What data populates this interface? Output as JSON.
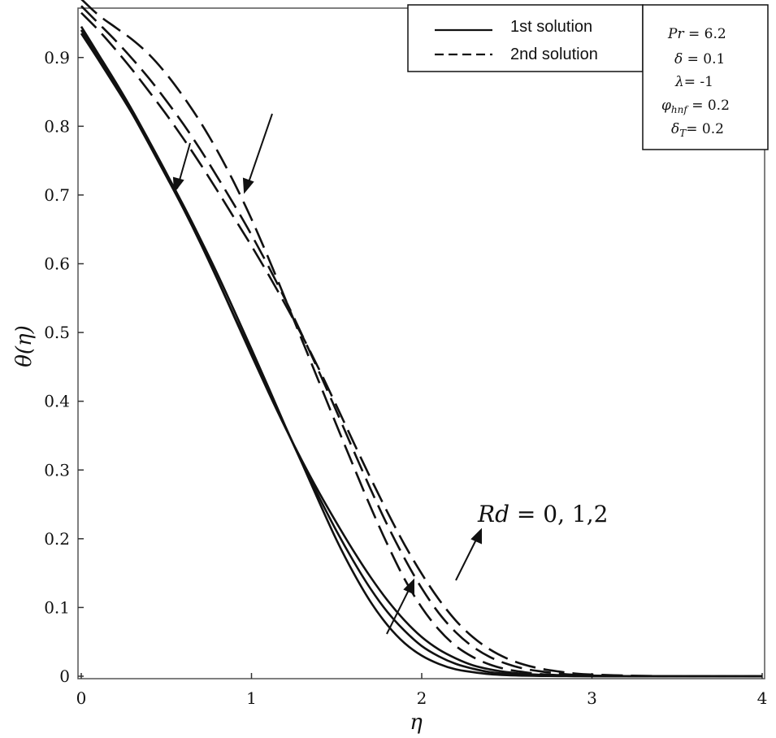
{
  "chart_data": {
    "type": "line",
    "xlabel": "η",
    "ylabel": "θ(η)",
    "xlim": [
      0,
      4
    ],
    "ylim": [
      0,
      0.96
    ],
    "xticks": [
      0,
      1,
      2,
      3,
      4
    ],
    "yticks": [
      0,
      0.1,
      0.2,
      0.3,
      0.4,
      0.5,
      0.6,
      0.7,
      0.8,
      0.9
    ],
    "x": [
      0,
      0.1,
      0.2,
      0.3,
      0.4,
      0.5,
      0.6,
      0.7,
      0.8,
      0.9,
      1.0,
      1.1,
      1.2,
      1.3,
      1.4,
      1.5,
      1.6,
      1.7,
      1.8,
      1.9,
      2.0,
      2.1,
      2.2,
      2.3,
      2.4,
      2.5,
      2.6,
      2.7,
      2.8,
      2.9,
      3.0,
      3.2,
      3.4,
      3.6,
      3.8,
      4.0
    ],
    "legend": {
      "items": [
        {
          "label": "1st solution",
          "style": "solid"
        },
        {
          "label": "2nd solution",
          "style": "dashed"
        }
      ]
    },
    "parameters": {
      "pr": {
        "symbol": "Pr",
        "value": " = 6.2"
      },
      "delta": {
        "symbol": "δ",
        "value": " = 0.1"
      },
      "lambda": {
        "symbol": "λ",
        "value": "=  -1"
      },
      "phi": {
        "symbol": "φ",
        "sub": "hnf",
        "value": " = 0.2"
      },
      "delta_t": {
        "symbol": "δ",
        "sub": "T",
        "value": "= 0.2"
      }
    },
    "annotation": {
      "symbol": "Rd",
      "value": " = 0, 1,2"
    },
    "series": [
      {
        "name": "1st solution Rd = 0",
        "style": "solid",
        "values": [
          0.935,
          0.897,
          0.858,
          0.818,
          0.775,
          0.731,
          0.685,
          0.636,
          0.585,
          0.531,
          0.476,
          0.42,
          0.363,
          0.308,
          0.252,
          0.198,
          0.15,
          0.108,
          0.074,
          0.048,
          0.03,
          0.018,
          0.01,
          0.006,
          0.003,
          0.0015,
          0.0008,
          0.0004,
          0.0002,
          0.0001,
          0.0,
          0.0,
          0.0,
          0.0,
          0.0,
          0.0
        ]
      },
      {
        "name": "1st solution Rd = 1",
        "style": "solid",
        "values": [
          0.94,
          0.9,
          0.86,
          0.818,
          0.773,
          0.727,
          0.68,
          0.63,
          0.577,
          0.523,
          0.47,
          0.416,
          0.362,
          0.309,
          0.259,
          0.211,
          0.167,
          0.127,
          0.093,
          0.066,
          0.044,
          0.029,
          0.018,
          0.011,
          0.006,
          0.0035,
          0.002,
          0.001,
          0.0005,
          0.0002,
          0.0001,
          0.0,
          0.0,
          0.0,
          0.0,
          0.0
        ]
      },
      {
        "name": "1st solution Rd = 2",
        "style": "solid",
        "values": [
          0.945,
          0.905,
          0.865,
          0.823,
          0.778,
          0.732,
          0.684,
          0.632,
          0.578,
          0.522,
          0.467,
          0.413,
          0.361,
          0.312,
          0.266,
          0.223,
          0.182,
          0.144,
          0.11,
          0.081,
          0.057,
          0.039,
          0.026,
          0.016,
          0.01,
          0.006,
          0.0035,
          0.002,
          0.001,
          0.0005,
          0.0002,
          0.0001,
          0.0,
          0.0,
          0.0,
          0.0
        ]
      },
      {
        "name": "2nd solution Rd = 0",
        "style": "dashed",
        "values": [
          0.985,
          0.962,
          0.944,
          0.926,
          0.904,
          0.876,
          0.843,
          0.806,
          0.764,
          0.717,
          0.665,
          0.608,
          0.548,
          0.487,
          0.426,
          0.365,
          0.305,
          0.246,
          0.191,
          0.141,
          0.1,
          0.068,
          0.044,
          0.028,
          0.017,
          0.01,
          0.006,
          0.003,
          0.0017,
          0.001,
          0.0005,
          0.0001,
          0.0,
          0.0,
          0.0,
          0.0
        ]
      },
      {
        "name": "2nd solution Rd = 1",
        "style": "dashed",
        "values": [
          0.975,
          0.95,
          0.925,
          0.898,
          0.869,
          0.837,
          0.803,
          0.766,
          0.726,
          0.685,
          0.642,
          0.596,
          0.547,
          0.495,
          0.441,
          0.385,
          0.328,
          0.272,
          0.219,
          0.171,
          0.128,
          0.092,
          0.064,
          0.043,
          0.028,
          0.018,
          0.011,
          0.007,
          0.004,
          0.002,
          0.001,
          0.0003,
          0.0001,
          0.0,
          0.0,
          0.0
        ]
      },
      {
        "name": "2nd solution Rd = 2",
        "style": "dashed",
        "values": [
          0.965,
          0.94,
          0.912,
          0.882,
          0.85,
          0.817,
          0.782,
          0.745,
          0.706,
          0.666,
          0.626,
          0.584,
          0.54,
          0.494,
          0.445,
          0.393,
          0.34,
          0.288,
          0.238,
          0.191,
          0.149,
          0.112,
          0.081,
          0.057,
          0.039,
          0.026,
          0.017,
          0.011,
          0.007,
          0.004,
          0.0025,
          0.001,
          0.0003,
          0.0001,
          0.0,
          0.0
        ]
      }
    ]
  }
}
